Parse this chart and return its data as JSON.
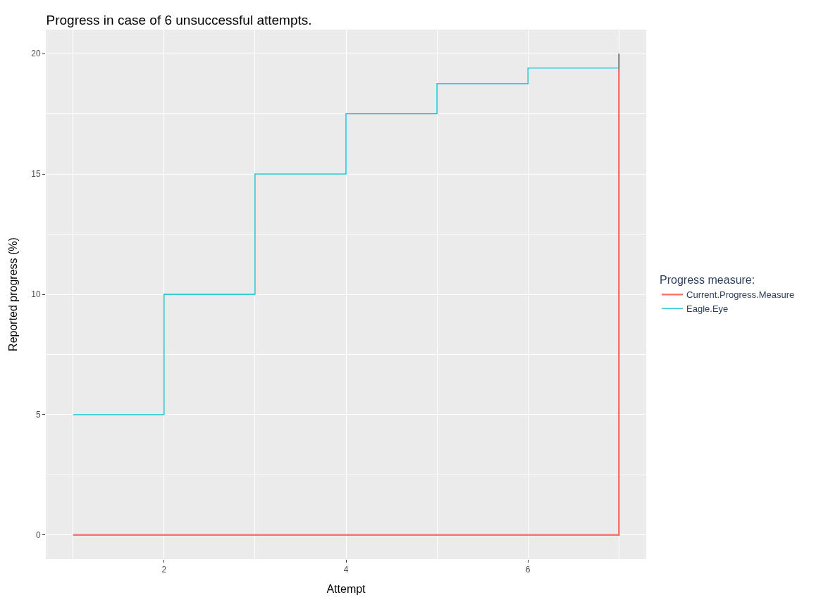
{
  "chart_data": {
    "type": "step",
    "title": "Progress in case of 6 unsuccessful attempts.",
    "xlabel": "Attempt",
    "ylabel": "Reported progress (%)",
    "legend_title": "Progress measure:",
    "x": [
      1,
      2,
      3,
      4,
      5,
      6,
      7
    ],
    "series": [
      {
        "name": "Current.Progress.Measure",
        "color": "#f8766d",
        "values": [
          0,
          0,
          0,
          0,
          0,
          0,
          20
        ]
      },
      {
        "name": "Eagle.Eye",
        "color": "#00bfc4",
        "values": [
          5,
          10,
          15,
          17.5,
          18.75,
          19.4,
          20
        ]
      }
    ],
    "xlim": [
      0.7,
      7.3
    ],
    "xticks": [
      2,
      4,
      6
    ],
    "ylim": [
      -1,
      21
    ],
    "yticks": [
      0,
      5,
      10,
      15,
      20
    ],
    "grid": true,
    "legend": "right"
  }
}
